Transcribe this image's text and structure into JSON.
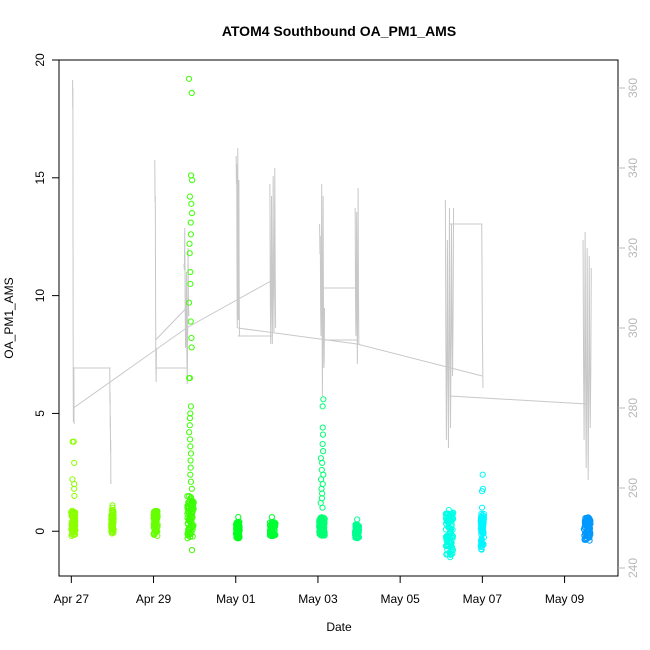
{
  "chart_data": {
    "type": "scatter",
    "title": "ATOM4 Southbound OA_PM1_AMS",
    "xlabel": "Date",
    "ylabel": "OA_PM1_AMS",
    "xlim": [
      -0.3,
      13.3
    ],
    "ylim": [
      -1.9,
      20.0
    ],
    "x_ticks": [
      {
        "day": 0,
        "label": "Apr 27"
      },
      {
        "day": 2,
        "label": "Apr 29"
      },
      {
        "day": 4,
        "label": "May 01"
      },
      {
        "day": 6,
        "label": "May 03"
      },
      {
        "day": 8,
        "label": "May 05"
      },
      {
        "day": 10,
        "label": "May 07"
      },
      {
        "day": 12,
        "label": "May 09"
      }
    ],
    "y_ticks": [
      0,
      5,
      10,
      15,
      20
    ],
    "y2_ticks": [
      240,
      260,
      280,
      300,
      320,
      340,
      360
    ],
    "y2lim": [
      238,
      367
    ],
    "clusters": [
      {
        "day": 0.05,
        "spread": 0.1,
        "color": "#8cff00",
        "core_min": -0.2,
        "core_max": 0.9,
        "outliers": [
          3.8,
          3.8,
          2.9,
          2.2,
          2.0,
          1.8,
          1.5
        ]
      },
      {
        "day": 1.0,
        "spread": 0.06,
        "color": "#84ff00",
        "core_min": -0.1,
        "core_max": 0.9,
        "outliers": [
          1.1,
          1.0
        ]
      },
      {
        "day": 2.05,
        "spread": 0.1,
        "color": "#66ff00",
        "core_min": -0.2,
        "core_max": 0.9,
        "outliers": []
      },
      {
        "day": 2.9,
        "spread": 0.16,
        "color": "#3cff00",
        "core_min": -0.3,
        "core_max": 1.5,
        "outliers": [
          19.2,
          18.6,
          15.1,
          14.9,
          14.2,
          13.9,
          13.5,
          13.1,
          12.6,
          12.2,
          11.8,
          11.0,
          10.5,
          9.7,
          8.9,
          8.2,
          7.8,
          6.5,
          6.5,
          5.3,
          5.0,
          4.8,
          4.5,
          4.2,
          3.9,
          3.6,
          3.3,
          3.0,
          2.7,
          2.4,
          2.1,
          1.8,
          -0.8
        ]
      },
      {
        "day": 4.05,
        "spread": 0.09,
        "color": "#00ff1e",
        "core_min": -0.3,
        "core_max": 0.4,
        "outliers": [
          0.6
        ]
      },
      {
        "day": 4.9,
        "spread": 0.14,
        "color": "#00ff33",
        "core_min": -0.2,
        "core_max": 0.4,
        "outliers": [
          0.6
        ]
      },
      {
        "day": 6.1,
        "spread": 0.14,
        "color": "#00ff73",
        "core_min": -0.2,
        "core_max": 0.6,
        "outliers": [
          5.6,
          5.3,
          4.4,
          4.1,
          3.7,
          3.4,
          3.1,
          2.9,
          2.6,
          2.4,
          2.2,
          2.0,
          1.8,
          1.6,
          1.4,
          1.2,
          1.0
        ]
      },
      {
        "day": 6.95,
        "spread": 0.1,
        "color": "#00ff90",
        "core_min": -0.3,
        "core_max": 0.3,
        "outliers": [
          0.5
        ]
      },
      {
        "day": 9.2,
        "spread": 0.18,
        "color": "#00ffe6",
        "core_min": -1.0,
        "core_max": 0.8,
        "outliers": [
          -1.1,
          0.9
        ]
      },
      {
        "day": 10.0,
        "spread": 0.08,
        "color": "#00f6ff",
        "core_min": -0.8,
        "core_max": 0.8,
        "outliers": [
          2.4,
          1.8,
          1.7,
          1.0
        ]
      },
      {
        "day": 12.55,
        "spread": 0.16,
        "color": "#0099ff",
        "core_min": -0.4,
        "core_max": 0.6,
        "outliers": []
      }
    ],
    "secondary_series": {
      "name": "right-axis series",
      "color": "#c8c8c8",
      "bursts": [
        {
          "day": 0.05,
          "width": 0.04,
          "peaks": [
            362,
            360,
            285,
            280,
            290,
            276
          ]
        },
        {
          "day": 0.95,
          "width": 0.03,
          "peaks": [
            290,
            284,
            278,
            272,
            262
          ]
        },
        {
          "day": 2.05,
          "width": 0.04,
          "peaks": [
            342,
            333,
            290,
            295
          ]
        },
        {
          "day": 2.8,
          "width": 0.12,
          "peaks": [
            316,
            325,
            295,
            314,
            286,
            320,
            303
          ]
        },
        {
          "day": 4.05,
          "width": 0.08,
          "peaks": [
            343,
            341,
            300,
            345,
            302,
            337,
            298
          ]
        },
        {
          "day": 4.9,
          "width": 0.14,
          "peaks": [
            336,
            296,
            333,
            296,
            338,
            299,
            340,
            300
          ]
        },
        {
          "day": 6.1,
          "width": 0.12,
          "peaks": [
            326,
            323,
            298,
            336,
            283,
            333,
            290,
            305
          ]
        },
        {
          "day": 6.95,
          "width": 0.09,
          "peaks": [
            330,
            298,
            329,
            291,
            335,
            296
          ]
        },
        {
          "day": 9.2,
          "width": 0.2,
          "peaks": [
            332,
            272,
            322,
            270,
            330,
            275,
            326,
            288,
            330
          ]
        },
        {
          "day": 10.0,
          "width": 0.03,
          "peaks": [
            326,
            285
          ]
        },
        {
          "day": 12.55,
          "width": 0.2,
          "peaks": [
            322,
            272,
            324,
            265,
            320,
            262,
            318,
            275,
            315
          ]
        }
      ],
      "connectors": [
        [
          [
            0.05,
            280
          ],
          [
            2.8,
            300
          ],
          [
            4.9,
            312
          ]
        ],
        [
          [
            0.05,
            290
          ],
          [
            0.95,
            290
          ]
        ],
        [
          [
            2.05,
            290
          ],
          [
            2.8,
            290
          ]
        ],
        [
          [
            2.05,
            297
          ],
          [
            2.8,
            305
          ]
        ],
        [
          [
            4.05,
            300
          ],
          [
            6.95,
            296
          ],
          [
            10.0,
            288
          ]
        ],
        [
          [
            4.05,
            298
          ],
          [
            4.9,
            298
          ]
        ],
        [
          [
            6.1,
            310
          ],
          [
            6.95,
            310
          ]
        ],
        [
          [
            6.1,
            297
          ],
          [
            6.95,
            297
          ]
        ],
        [
          [
            9.2,
            283
          ],
          [
            12.55,
            281
          ]
        ],
        [
          [
            9.2,
            326
          ],
          [
            10.0,
            326
          ]
        ]
      ]
    }
  }
}
